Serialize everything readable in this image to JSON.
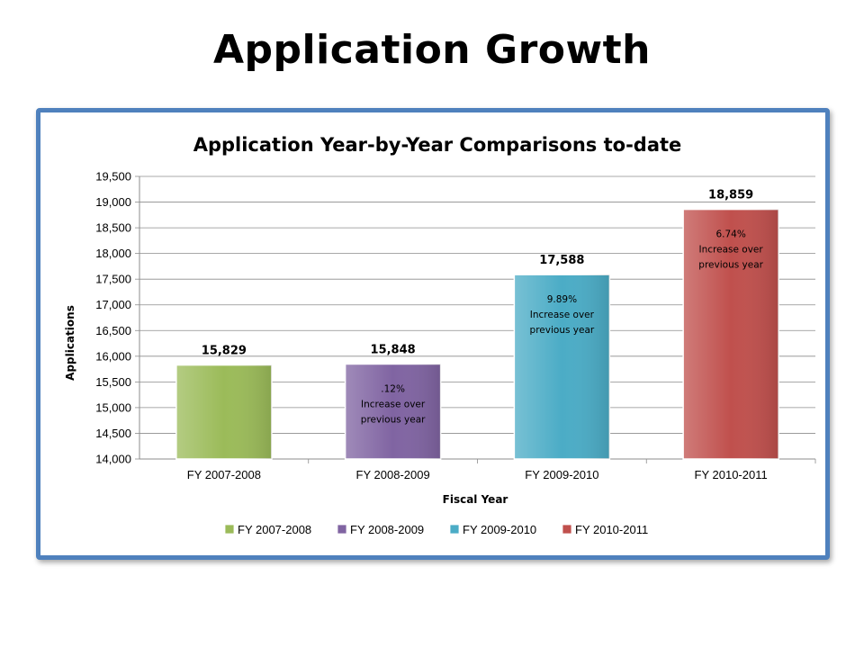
{
  "slide": {
    "title": "Application Growth"
  },
  "chart_data": {
    "type": "bar",
    "title": "Application Year-by-Year Comparisons to-date",
    "xlabel": "Fiscal Year",
    "ylabel": "Applications",
    "ylim": [
      14000,
      19500
    ],
    "yticks": [
      14000,
      14500,
      15000,
      15500,
      16000,
      16500,
      17000,
      17500,
      18000,
      18500,
      19000,
      19500
    ],
    "ytick_labels": [
      "14,000",
      "14,500",
      "15,000",
      "15,500",
      "16,000",
      "16,500",
      "17,000",
      "17,500",
      "18,000",
      "18,500",
      "19,000",
      "19,500"
    ],
    "categories": [
      "FY 2007-2008",
      "FY 2008-2009",
      "FY 2009-2010",
      "FY 2010-2011"
    ],
    "values": [
      15829,
      15848,
      17588,
      18859
    ],
    "data_labels": [
      "15,829",
      "15,848",
      "17,588",
      "18,859"
    ],
    "colors": [
      "#9bbb59",
      "#8064a2",
      "#4bacc6",
      "#c0504d"
    ],
    "annotations": [
      {
        "category": "FY 2008-2009",
        "lines": [
          ".12%",
          "Increase over",
          "previous year"
        ]
      },
      {
        "category": "FY 2009-2010",
        "lines": [
          "9.89%",
          "Increase over",
          "previous year"
        ]
      },
      {
        "category": "FY 2010-2011",
        "lines": [
          "6.74%",
          "Increase over",
          "previous year"
        ]
      }
    ],
    "legend": {
      "position": "bottom",
      "entries": [
        "FY 2007-2008",
        "FY 2008-2009",
        "FY 2009-2010",
        "FY 2010-2011"
      ]
    },
    "grid": true
  }
}
